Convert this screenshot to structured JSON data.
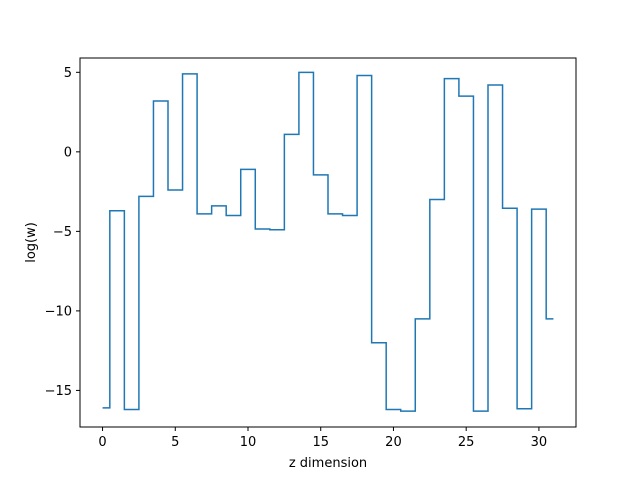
{
  "chart_data": {
    "type": "line",
    "drawstyle": "steps-mid",
    "title": "",
    "xlabel": "z dimension",
    "ylabel": "log(w)",
    "xlim": [
      -1.55,
      32.55
    ],
    "ylim": [
      -17.3,
      5.9
    ],
    "xticks": [
      0,
      5,
      10,
      15,
      20,
      25,
      30
    ],
    "xtick_labels": [
      "0",
      "5",
      "10",
      "15",
      "20",
      "25",
      "30"
    ],
    "yticks": [
      5,
      0,
      -5,
      -10,
      -15
    ],
    "ytick_labels": [
      "5",
      "0",
      "−5",
      "−10",
      "−15"
    ],
    "grid": false,
    "legend": "none",
    "line_color": "#1f77b4",
    "series": [
      {
        "x": [
          0,
          1,
          2,
          3,
          4,
          5,
          6,
          7,
          8,
          9,
          10,
          11,
          12,
          13,
          14,
          15,
          16,
          17,
          18,
          19,
          20,
          21,
          22,
          23,
          24,
          25,
          26,
          27,
          28,
          29,
          30,
          31
        ],
        "values": [
          -16.1,
          -3.7,
          -16.2,
          -2.8,
          3.2,
          -2.4,
          4.9,
          -3.9,
          -3.4,
          -4.0,
          -1.1,
          -4.85,
          -4.9,
          1.1,
          5.0,
          -1.45,
          -3.9,
          -4.0,
          4.8,
          -12.0,
          -16.2,
          -16.3,
          -10.5,
          -3.0,
          4.6,
          3.5,
          -16.3,
          4.2,
          -3.55,
          -16.15,
          -3.6,
          -10.5
        ]
      }
    ]
  }
}
